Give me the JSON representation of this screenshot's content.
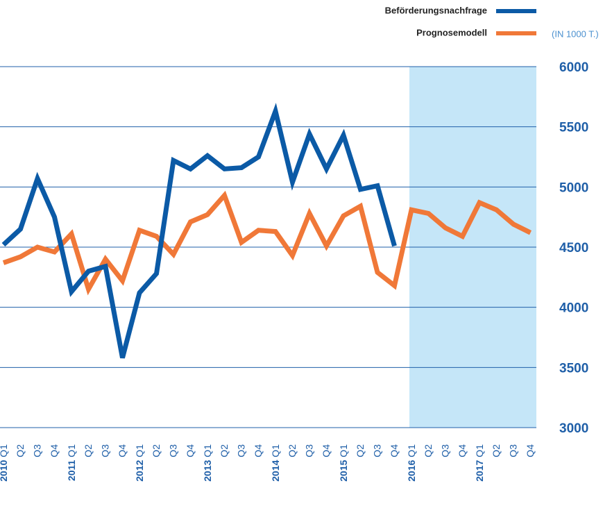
{
  "chart_data": {
    "type": "line",
    "unit_label": "(IN 1000 T.)",
    "categories": [
      "2010 Q1",
      "Q2",
      "Q3",
      "Q4",
      "2011 Q1",
      "Q2",
      "Q3",
      "Q4",
      "2012 Q1",
      "Q2",
      "Q3",
      "Q4",
      "2013 Q1",
      "Q2",
      "Q3",
      "Q4",
      "2014 Q1",
      "Q2",
      "Q3",
      "Q4",
      "2015 Q1",
      "Q2",
      "Q3",
      "Q4",
      "2016 Q1",
      "Q2",
      "Q3",
      "Q4",
      "2017 Q1",
      "Q2",
      "Q3",
      "Q4"
    ],
    "series": [
      {
        "name": "Beförderungsnachfrage",
        "color": "#0b5aa6",
        "values": [
          4520,
          4650,
          5070,
          4750,
          4130,
          4300,
          4340,
          3580,
          4120,
          4280,
          5220,
          5150,
          5260,
          5150,
          5160,
          5250,
          5630,
          5040,
          5440,
          5150,
          5430,
          4980,
          5010,
          4510,
          null,
          null,
          null,
          null,
          null,
          null,
          null,
          null
        ]
      },
      {
        "name": "Prognosemodell",
        "color": "#f07838",
        "values": [
          4370,
          4420,
          4500,
          4460,
          4610,
          4150,
          4400,
          4220,
          4640,
          4590,
          4440,
          4710,
          4770,
          4930,
          4540,
          4640,
          4630,
          4430,
          4780,
          4510,
          4760,
          4840,
          4290,
          4180,
          4810,
          4780,
          4660,
          4590,
          4870,
          4810,
          4690,
          4620
        ]
      }
    ],
    "ylim": [
      3000,
      6000
    ],
    "yticks": [
      3000,
      3500,
      4000,
      4500,
      5000,
      5500,
      6000
    ],
    "grid": true,
    "forecast_shade": {
      "from": "2016 Q1",
      "color": "#c5e6f8"
    }
  }
}
